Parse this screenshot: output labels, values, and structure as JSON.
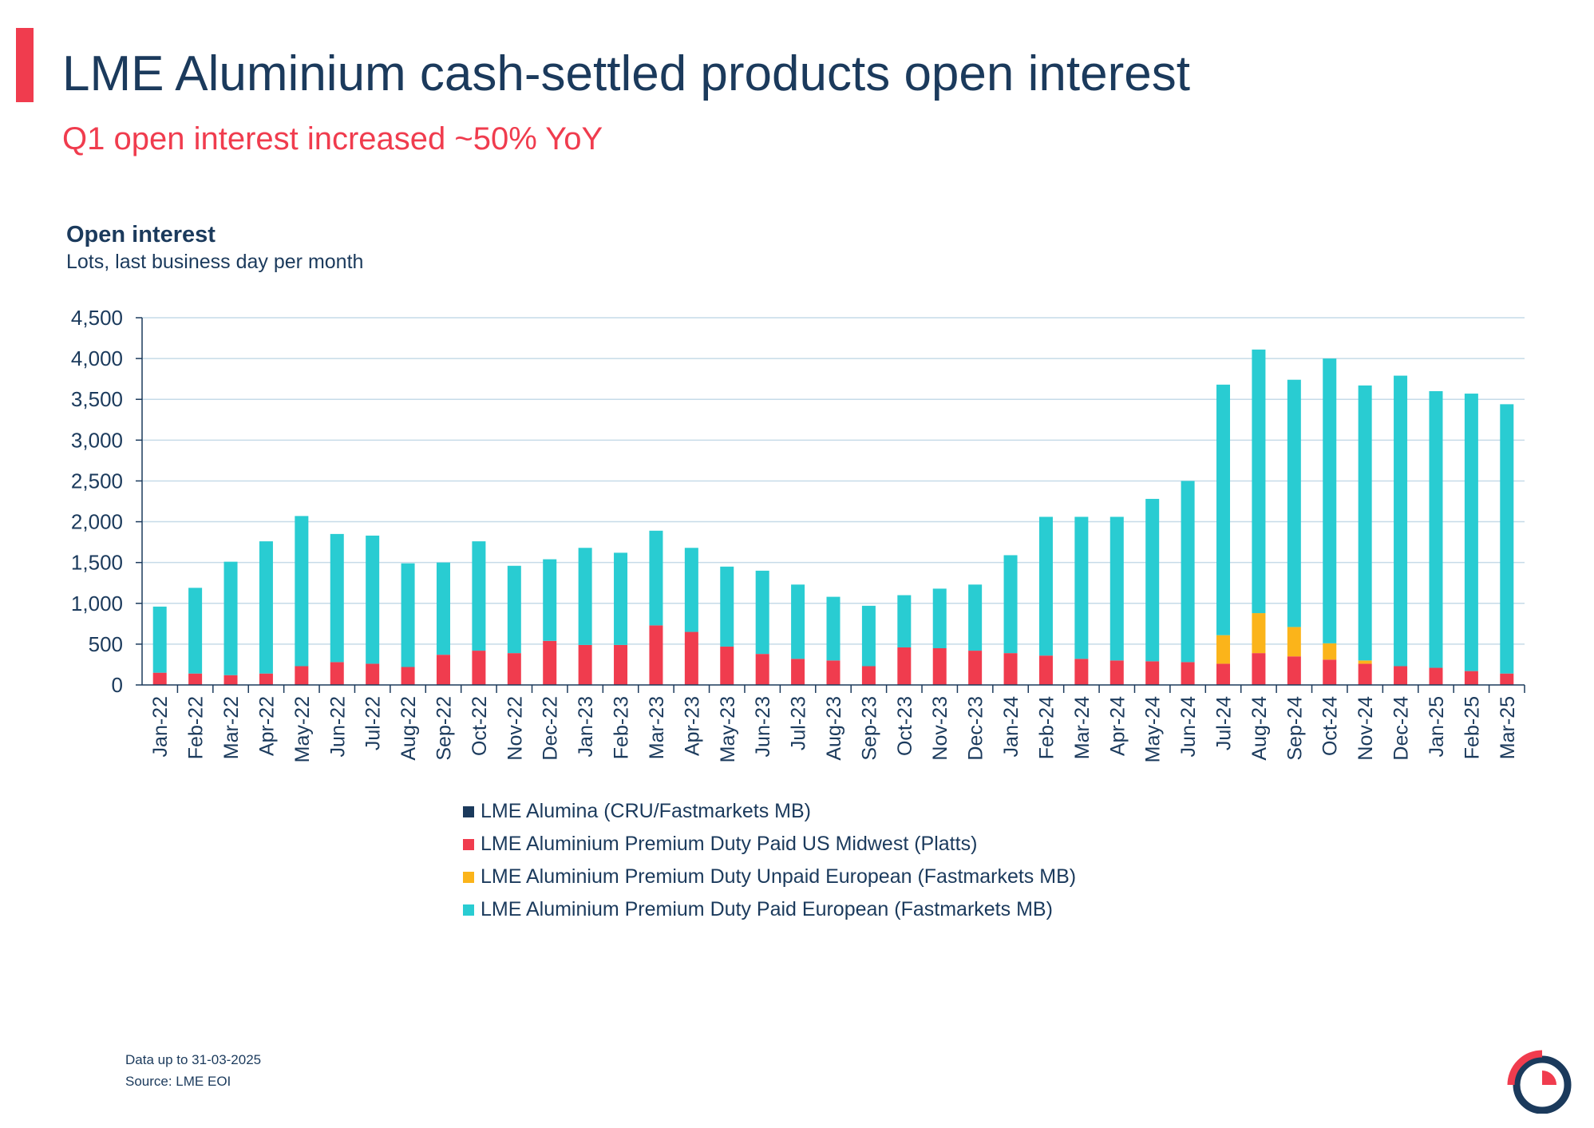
{
  "header": {
    "title": "LME Aluminium cash-settled products open interest",
    "subtitle": "Q1 open interest increased ~50% YoY"
  },
  "colors": {
    "navy": "#1b3a5c",
    "accent_red": "#f03c4e",
    "grid": "#c6dbe8"
  },
  "chart_data": {
    "type": "bar",
    "stacked": true,
    "title": "Open interest",
    "subtitle": "Lots, last business day per month",
    "ylim": [
      0,
      4500
    ],
    "yticks": [
      0,
      500,
      1000,
      1500,
      2000,
      2500,
      3000,
      3500,
      4000,
      4500
    ],
    "ytick_labels": [
      "0",
      "500",
      "1,000",
      "1,500",
      "2,000",
      "2,500",
      "3,000",
      "3,500",
      "4,000",
      "4,500"
    ],
    "grid": true,
    "legend_position": "bottom",
    "categories": [
      "Jan-22",
      "Feb-22",
      "Mar-22",
      "Apr-22",
      "May-22",
      "Jun-22",
      "Jul-22",
      "Aug-22",
      "Sep-22",
      "Oct-22",
      "Nov-22",
      "Dec-22",
      "Jan-23",
      "Feb-23",
      "Mar-23",
      "Apr-23",
      "May-23",
      "Jun-23",
      "Jul-23",
      "Aug-23",
      "Sep-23",
      "Oct-23",
      "Nov-23",
      "Dec-23",
      "Jan-24",
      "Feb-24",
      "Mar-24",
      "Apr-24",
      "May-24",
      "Jun-24",
      "Jul-24",
      "Aug-24",
      "Sep-24",
      "Oct-24",
      "Nov-24",
      "Dec-24",
      "Jan-25",
      "Feb-25",
      "Mar-25"
    ],
    "series": [
      {
        "name": "LME Alumina (CRU/Fastmarkets MB)",
        "color": "#1b3a5c",
        "values": [
          0,
          0,
          0,
          0,
          0,
          0,
          0,
          0,
          0,
          0,
          0,
          0,
          0,
          0,
          0,
          0,
          0,
          0,
          0,
          0,
          0,
          0,
          0,
          0,
          0,
          0,
          0,
          0,
          0,
          0,
          0,
          0,
          0,
          0,
          0,
          0,
          0,
          0,
          0
        ]
      },
      {
        "name": "LME Aluminium Premium Duty Paid US Midwest (Platts)",
        "color": "#f03c4e",
        "values": [
          150,
          140,
          120,
          140,
          230,
          280,
          260,
          220,
          370,
          420,
          390,
          540,
          490,
          490,
          730,
          650,
          470,
          380,
          320,
          300,
          230,
          460,
          450,
          420,
          390,
          360,
          320,
          300,
          290,
          280,
          260,
          390,
          350,
          310,
          260,
          230,
          210,
          170,
          140
        ]
      },
      {
        "name": "LME Aluminium Premium Duty Unpaid European (Fastmarkets MB)",
        "color": "#fbb41a",
        "values": [
          0,
          0,
          0,
          0,
          0,
          0,
          0,
          0,
          0,
          0,
          0,
          0,
          0,
          0,
          0,
          0,
          0,
          0,
          0,
          0,
          0,
          0,
          0,
          0,
          0,
          0,
          0,
          0,
          0,
          0,
          350,
          490,
          360,
          200,
          40,
          0,
          0,
          0,
          0
        ]
      },
      {
        "name": "LME Aluminium Premium Duty Paid European (Fastmarkets MB)",
        "color": "#29ccd2",
        "values": [
          810,
          1050,
          1390,
          1620,
          1840,
          1570,
          1570,
          1270,
          1130,
          1340,
          1070,
          1000,
          1190,
          1130,
          1160,
          1030,
          980,
          1020,
          910,
          780,
          740,
          640,
          730,
          810,
          1200,
          1700,
          1740,
          1760,
          1990,
          2220,
          3070,
          3230,
          3030,
          3490,
          3370,
          3560,
          3390,
          3400,
          3300
        ]
      }
    ]
  },
  "footnotes": {
    "data_up_to": "Data up to 31-03-2025",
    "source": "Source: LME EOI"
  },
  "logo": {
    "icon": "lme-logo-icon"
  }
}
